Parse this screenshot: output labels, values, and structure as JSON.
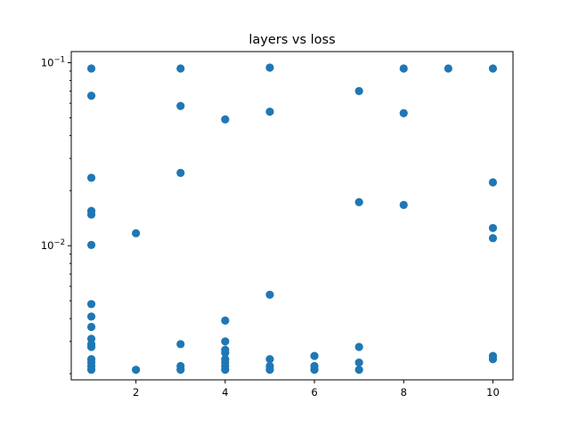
{
  "chart_data": {
    "type": "scatter",
    "title": "layers vs loss",
    "xlabel": "",
    "ylabel": "",
    "y_scale": "log",
    "xlim": [
      0.55,
      10.45
    ],
    "ylim": [
      0.00185,
      0.115
    ],
    "grid": false,
    "color": "#1f77b4",
    "x_ticks": [
      {
        "value": 2,
        "label": "2"
      },
      {
        "value": 4,
        "label": "4"
      },
      {
        "value": 6,
        "label": "6"
      },
      {
        "value": 8,
        "label": "8"
      },
      {
        "value": 10,
        "label": "10"
      }
    ],
    "y_ticks": [
      {
        "value": 0.01,
        "base": "10",
        "exp": "−2"
      },
      {
        "value": 0.1,
        "base": "10",
        "exp": "−1"
      }
    ],
    "points": [
      [
        1,
        0.093
      ],
      [
        1,
        0.066
      ],
      [
        1,
        0.0235
      ],
      [
        1,
        0.0155
      ],
      [
        1,
        0.0148
      ],
      [
        1,
        0.0101
      ],
      [
        1,
        0.0048
      ],
      [
        1,
        0.0041
      ],
      [
        1,
        0.0036
      ],
      [
        1,
        0.0031
      ],
      [
        1,
        0.0029
      ],
      [
        1,
        0.0028
      ],
      [
        1,
        0.0024
      ],
      [
        1,
        0.0023
      ],
      [
        1,
        0.0022
      ],
      [
        1,
        0.0021
      ],
      [
        2,
        0.0117
      ],
      [
        2,
        0.0021
      ],
      [
        3,
        0.093
      ],
      [
        3,
        0.058
      ],
      [
        3,
        0.025
      ],
      [
        3,
        0.0029
      ],
      [
        3,
        0.0022
      ],
      [
        3,
        0.0021
      ],
      [
        4,
        0.049
      ],
      [
        4,
        0.0039
      ],
      [
        4,
        0.003
      ],
      [
        4,
        0.0027
      ],
      [
        4,
        0.0026
      ],
      [
        4,
        0.0024
      ],
      [
        4,
        0.0023
      ],
      [
        4,
        0.0022
      ],
      [
        4,
        0.0021
      ],
      [
        5,
        0.094
      ],
      [
        5,
        0.054
      ],
      [
        5,
        0.0054
      ],
      [
        5,
        0.0024
      ],
      [
        5,
        0.0022
      ],
      [
        5,
        0.0021
      ],
      [
        6,
        0.0025
      ],
      [
        6,
        0.0022
      ],
      [
        6,
        0.0021
      ],
      [
        7,
        0.07
      ],
      [
        7,
        0.0173
      ],
      [
        7,
        0.0028
      ],
      [
        7,
        0.0023
      ],
      [
        7,
        0.0021
      ],
      [
        8,
        0.093
      ],
      [
        8,
        0.053
      ],
      [
        8,
        0.0167
      ],
      [
        9,
        0.093
      ],
      [
        10,
        0.093
      ],
      [
        10,
        0.0222
      ],
      [
        10,
        0.0125
      ],
      [
        10,
        0.011
      ],
      [
        10,
        0.0025
      ],
      [
        10,
        0.0024
      ]
    ]
  }
}
